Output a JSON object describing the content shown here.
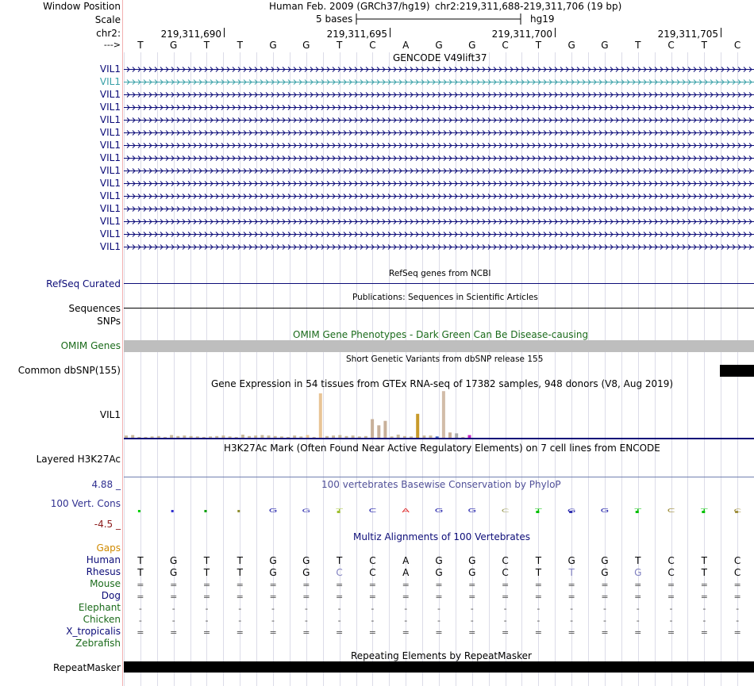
{
  "header": {
    "window_position_label": "Window Position",
    "scale_label": "Scale",
    "chrom_label": "chr2:",
    "strand_label": "--->",
    "assembly_title": "Human Feb. 2009 (GRCh37/hg19)",
    "position": "chr2:219,311,688-219,311,706 (19 bp)",
    "scale_bar_label": "5 bases",
    "assembly_short": "hg19",
    "ruler_ticks": [
      "219,311,690",
      "219,311,695",
      "219,311,700",
      "219,311,705"
    ],
    "bases": [
      "T",
      "G",
      "T",
      "T",
      "G",
      "G",
      "T",
      "C",
      "A",
      "G",
      "G",
      "C",
      "T",
      "G",
      "G",
      "T",
      "C",
      "T",
      "C"
    ]
  },
  "gencode": {
    "title": "GENCODE V49lift37",
    "gene_label": "VIL1",
    "transcript_count": 15,
    "highlighted_index": 1,
    "color": "#0c0c78",
    "highlight_color": "#3aa1a8"
  },
  "refseq": {
    "label": "RefSeq Curated",
    "title": "RefSeq genes from NCBI",
    "color": "#0c0c78"
  },
  "publications": {
    "label": "Sequences",
    "title": "Publications: Sequences in Scientific Articles"
  },
  "snps_label": "SNPs",
  "omim": {
    "label": "OMIM Genes",
    "title": "OMIM Gene Phenotypes - Dark Green Can Be Disease-causing",
    "color": "#1b6b1b",
    "bar_color": "#bebebe"
  },
  "dbsnp": {
    "label": "Common dbSNP(155)",
    "title": "Short Genetic Variants from dbSNP release 155"
  },
  "gtex": {
    "label": "VIL1",
    "title": "Gene Expression in 54 tissues from GTEx RNA-seq of 17382 samples, 948 donors (V8, Aug 2019)",
    "tissue_level_fractions": [
      0.05,
      0.06,
      0.02,
      0.02,
      0.03,
      0.04,
      0.02,
      0.06,
      0.04,
      0.05,
      0.04,
      0.03,
      0.02,
      0.03,
      0.04,
      0.05,
      0.03,
      0.02,
      0.07,
      0.04,
      0.05,
      0.06,
      0.05,
      0.04,
      0.03,
      0.02,
      0.05,
      0.03,
      0.04,
      0.02,
      0.03,
      0.04,
      0.05,
      0.06,
      0.04,
      0.05,
      0.03,
      0.04,
      0.08,
      0.05,
      0.04,
      0.03,
      0.07,
      0.04,
      0.03,
      0.06,
      0.05,
      0.05,
      0.04,
      0.05,
      0.04,
      0.03,
      0.02,
      0.04
    ],
    "highlight_levels": [
      {
        "tissue_index": 28,
        "level": 0.06,
        "color": "#e8c496"
      },
      {
        "tissue_index": 30,
        "level": 1.0,
        "color": "#e8c496"
      },
      {
        "tissue_index": 38,
        "level": 0.42,
        "color": "#c8b09a"
      },
      {
        "tissue_index": 39,
        "level": 0.28,
        "color": "#c8b09a"
      },
      {
        "tissue_index": 40,
        "level": 0.38,
        "color": "#c8b09a"
      },
      {
        "tissue_index": 45,
        "level": 0.54,
        "color": "#c89a2a"
      },
      {
        "tissue_index": 48,
        "level": 0.03,
        "color": "#4060c0"
      },
      {
        "tissue_index": 49,
        "level": 1.05,
        "color": "#d2bca8"
      },
      {
        "tissue_index": 50,
        "level": 0.12,
        "color": "#c8b09a"
      },
      {
        "tissue_index": 51,
        "level": 0.1,
        "color": "#aaaaaa"
      },
      {
        "tissue_index": 53,
        "level": 0.06,
        "color": "#c020c0"
      }
    ]
  },
  "h3k27ac": {
    "label": "Layered H3K27Ac",
    "title": "H3K27Ac Mark (Often Found Near Active Regulatory Elements) on 7 cell lines from ENCODE"
  },
  "conservation": {
    "label": "100 Vert. Cons",
    "title": "100 vertebrates Basewise Conservation by PhyloP",
    "max_label": "4.88 _",
    "min_label": "-4.5 _",
    "title_color": "#505098",
    "max_color": "#303090",
    "min_color": "#8b1a1a"
  },
  "multiz": {
    "title": "Multiz Alignments of 100 Vertebrates",
    "gaps_label": "Gaps",
    "gaps_color": "#d08a00",
    "species": [
      {
        "name": "Human",
        "color": "#0c0c78"
      },
      {
        "name": "Rhesus",
        "color": "#0c0c78"
      },
      {
        "name": "Mouse",
        "color": "#1b6b1b"
      },
      {
        "name": "Dog",
        "color": "#0c0c78"
      },
      {
        "name": "Elephant",
        "color": "#1b6b1b"
      },
      {
        "name": "Chicken",
        "color": "#1b6b1b"
      },
      {
        "name": "X_tropicalis",
        "color": "#0c0c78"
      },
      {
        "name": "Zebrafish",
        "color": "#1b6b1b"
      }
    ],
    "human_row": [
      "T",
      "G",
      "T",
      "T",
      "G",
      "G",
      "T",
      "C",
      "A",
      "G",
      "G",
      "C",
      "T",
      "G",
      "G",
      "T",
      "C",
      "T",
      "C"
    ],
    "rhesus_row": [
      "T",
      "G",
      "T",
      "T",
      "G",
      "G",
      "C",
      "C",
      "A",
      "G",
      "G",
      "C",
      "T",
      "T",
      "G",
      "G",
      "C",
      "T",
      "C"
    ],
    "rhesus_mismatch_indices": [
      6,
      13,
      15
    ],
    "mouse_row": "=",
    "dog_row": "=",
    "elephant_row": "-",
    "chicken_row": "-",
    "xtrop_row": "="
  },
  "repeatmasker": {
    "label": "RepeatMasker",
    "title": "Repeating Elements by RepeatMasker"
  }
}
